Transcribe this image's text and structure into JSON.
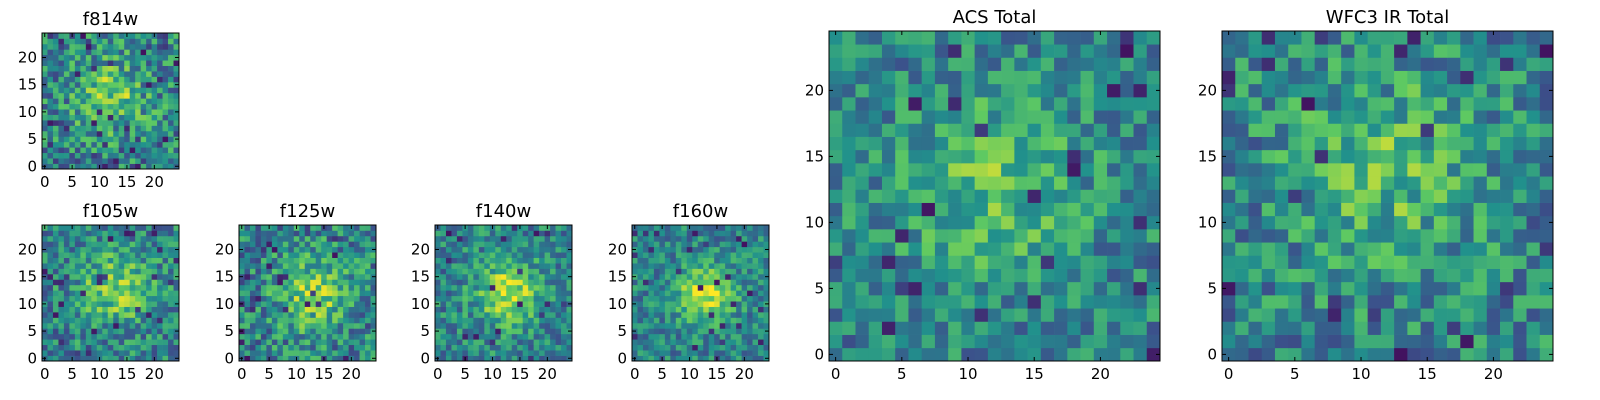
{
  "figure": {
    "colormap": "viridis",
    "colors": [
      "#440154",
      "#3b528b",
      "#21918c",
      "#5ec962",
      "#fde725"
    ],
    "axis_color": "#000000"
  },
  "chart_data": [
    {
      "type": "heatmap",
      "id": "f814w",
      "title": "f814w",
      "grid_size": 25,
      "xlim": [
        -0.5,
        24.5
      ],
      "ylim": [
        -0.5,
        24.5
      ],
      "x_ticks": [
        0,
        5,
        10,
        15,
        20
      ],
      "y_ticks": [
        0,
        5,
        10,
        15,
        20
      ],
      "center": [
        12,
        13
      ],
      "peak_sigma": 4.5,
      "peak_strength": 0.3,
      "noise": 0.28,
      "seed": 11
    },
    {
      "type": "heatmap",
      "id": "f105w",
      "title": "f105w",
      "grid_size": 25,
      "xlim": [
        -0.5,
        24.5
      ],
      "ylim": [
        -0.5,
        24.5
      ],
      "x_ticks": [
        0,
        5,
        10,
        15,
        20
      ],
      "y_ticks": [
        0,
        5,
        10,
        15,
        20
      ],
      "center": [
        13,
        13
      ],
      "peak_sigma": 4.5,
      "peak_strength": 0.35,
      "noise": 0.24,
      "seed": 23
    },
    {
      "type": "heatmap",
      "id": "f125w",
      "title": "f125w",
      "grid_size": 25,
      "xlim": [
        -0.5,
        24.5
      ],
      "ylim": [
        -0.5,
        24.5
      ],
      "x_ticks": [
        0,
        5,
        10,
        15,
        20
      ],
      "y_ticks": [
        0,
        5,
        10,
        15,
        20
      ],
      "center": [
        13,
        12
      ],
      "peak_sigma": 4.5,
      "peak_strength": 0.35,
      "noise": 0.26,
      "seed": 37
    },
    {
      "type": "heatmap",
      "id": "f140w",
      "title": "f140w",
      "grid_size": 25,
      "xlim": [
        -0.5,
        24.5
      ],
      "ylim": [
        -0.5,
        24.5
      ],
      "x_ticks": [
        0,
        5,
        10,
        15,
        20
      ],
      "y_ticks": [
        0,
        5,
        10,
        15,
        20
      ],
      "center": [
        13,
        12
      ],
      "peak_sigma": 4,
      "peak_strength": 0.45,
      "noise": 0.22,
      "seed": 53
    },
    {
      "type": "heatmap",
      "id": "f160w",
      "title": "f160w",
      "grid_size": 25,
      "xlim": [
        -0.5,
        24.5
      ],
      "ylim": [
        -0.5,
        24.5
      ],
      "x_ticks": [
        0,
        5,
        10,
        15,
        20
      ],
      "y_ticks": [
        0,
        5,
        10,
        15,
        20
      ],
      "center": [
        13,
        12
      ],
      "peak_sigma": 3.5,
      "peak_strength": 0.5,
      "noise": 0.2,
      "seed": 71
    },
    {
      "type": "heatmap",
      "id": "acs-total",
      "title": "ACS Total",
      "grid_size": 25,
      "xlim": [
        -0.5,
        24.5
      ],
      "ylim": [
        -0.5,
        24.5
      ],
      "x_ticks": [
        0,
        5,
        10,
        15,
        20
      ],
      "y_ticks": [
        0,
        5,
        10,
        15,
        20
      ],
      "center": [
        12,
        13
      ],
      "peak_sigma": 5,
      "peak_strength": 0.25,
      "noise": 0.22,
      "seed": 89
    },
    {
      "type": "heatmap",
      "id": "wfc3-ir-total",
      "title": "WFC3 IR Total",
      "grid_size": 25,
      "xlim": [
        -0.5,
        24.5
      ],
      "ylim": [
        -0.5,
        24.5
      ],
      "x_ticks": [
        0,
        5,
        10,
        15,
        20
      ],
      "y_ticks": [
        0,
        5,
        10,
        15,
        20
      ],
      "center": [
        12,
        14
      ],
      "peak_sigma": 5,
      "peak_strength": 0.25,
      "noise": 0.24,
      "seed": 97
    }
  ]
}
